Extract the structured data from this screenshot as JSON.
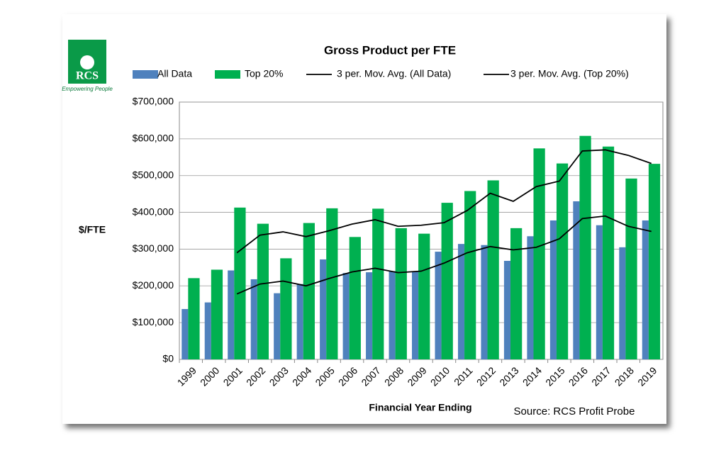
{
  "logo": {
    "text": "RCS",
    "tagline": "Empowering People"
  },
  "source": "Source: RCS Profit Probe",
  "chart_data": {
    "type": "bar",
    "title": "Gross Product per FTE",
    "x_label": "Financial Year Ending",
    "y_label": "$/FTE",
    "categories": [
      "1999",
      "2000",
      "2001",
      "2002",
      "2003",
      "2004",
      "2005",
      "2006",
      "2007",
      "2008",
      "2009",
      "2010",
      "2011",
      "2012",
      "2013",
      "2014",
      "2015",
      "2016",
      "2017",
      "2018",
      "2019"
    ],
    "series": [
      {
        "name": "All Data",
        "type": "bar",
        "color": "#4f81bd",
        "values": [
          137000,
          155000,
          242000,
          218000,
          180000,
          205000,
          272000,
          235000,
          237000,
          240000,
          240000,
          293000,
          314000,
          311000,
          268000,
          335000,
          378000,
          430000,
          365000,
          305000,
          378000
        ]
      },
      {
        "name": "Top 20%",
        "type": "bar",
        "color": "#00b050",
        "values": [
          221000,
          244000,
          413000,
          369000,
          275000,
          371000,
          411000,
          333000,
          410000,
          357000,
          342000,
          426000,
          458000,
          487000,
          357000,
          574000,
          533000,
          608000,
          579000,
          492000,
          532000
        ]
      },
      {
        "name": "3 per. Mov. Avg. (All Data)",
        "type": "line",
        "color": "#000000",
        "values": [
          null,
          null,
          178000,
          205000,
          213000,
          200000,
          220000,
          238000,
          248000,
          236000,
          240000,
          262000,
          290000,
          307000,
          298000,
          305000,
          328000,
          383000,
          390000,
          362000,
          348000
        ]
      },
      {
        "name": "3 per. Mov. Avg. (Top 20%)",
        "type": "line",
        "color": "#000000",
        "values": [
          null,
          null,
          290000,
          338000,
          347000,
          334000,
          350000,
          368000,
          380000,
          362000,
          365000,
          372000,
          405000,
          452000,
          430000,
          470000,
          485000,
          567000,
          570000,
          555000,
          533000
        ]
      }
    ],
    "ylim": [
      0,
      700000
    ],
    "yticks": [
      {
        "value": 0,
        "label": "$0"
      },
      {
        "value": 100000,
        "label": "$100,000"
      },
      {
        "value": 200000,
        "label": "$200,000"
      },
      {
        "value": 300000,
        "label": "$300,000"
      },
      {
        "value": 400000,
        "label": "$400,000"
      },
      {
        "value": 500000,
        "label": "$500,000"
      },
      {
        "value": 600000,
        "label": "$600,000"
      },
      {
        "value": 700000,
        "label": "$700,000"
      }
    ],
    "grid": true,
    "legend": "top"
  }
}
